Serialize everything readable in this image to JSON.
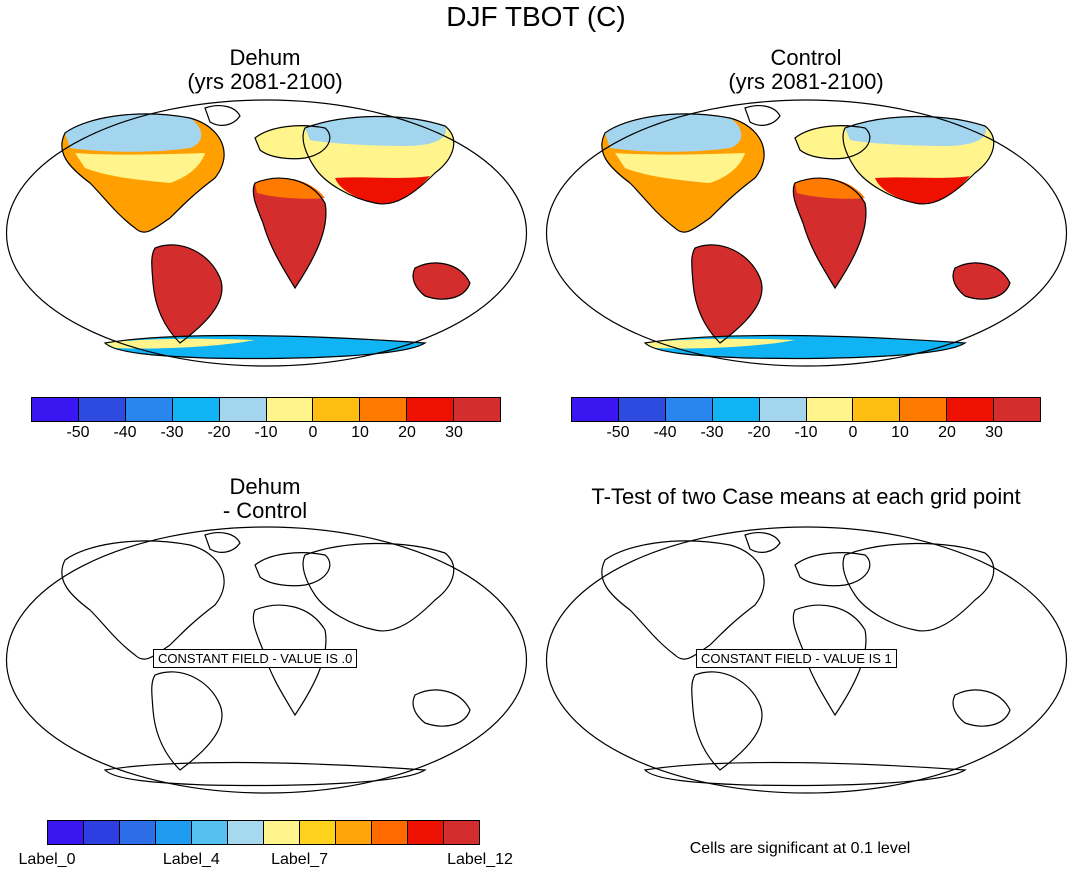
{
  "main_title": "DJF TBOT (C)",
  "panels": {
    "top_left": {
      "title_line1": "Dehum",
      "title_line2": "(yrs 2081-2100)"
    },
    "top_right": {
      "title_line1": "Control",
      "title_line2": "(yrs 2081-2100)"
    },
    "bottom_left": {
      "title_line1": "Dehum",
      "title_line2": "- Control",
      "constant_label": "CONSTANT FIELD - VALUE IS .0"
    },
    "bottom_right": {
      "title": "T-Test of two Case means at each grid point",
      "constant_label": "CONSTANT FIELD - VALUE IS 1",
      "note": "Cells are significant at 0.1 level"
    }
  },
  "colorbar_top": {
    "colors": [
      "#3a17f0",
      "#2e4be0",
      "#2a86ef",
      "#10b4f5",
      "#a3d6ee",
      "#fff58c",
      "#ffbe12",
      "#ff7a00",
      "#ee1000",
      "#d42d2d"
    ],
    "tick_labels": [
      "-50",
      "-40",
      "-30",
      "-20",
      "-10",
      "0",
      "10",
      "20",
      "30"
    ]
  },
  "colorbar_bottom": {
    "colors": [
      "#3a17f0",
      "#2e3fe2",
      "#2b6ee8",
      "#1f9cf2",
      "#56c0f2",
      "#a6d8ee",
      "#fff58c",
      "#ffd21e",
      "#ffa40a",
      "#ff6a00",
      "#ee1000",
      "#d42d2d"
    ],
    "labels": [
      {
        "text": "Label_0",
        "index": 0
      },
      {
        "text": "Label_4",
        "index": 4
      },
      {
        "text": "Label_7",
        "index": 7
      },
      {
        "text": "Label_12",
        "index": 12
      }
    ]
  }
}
